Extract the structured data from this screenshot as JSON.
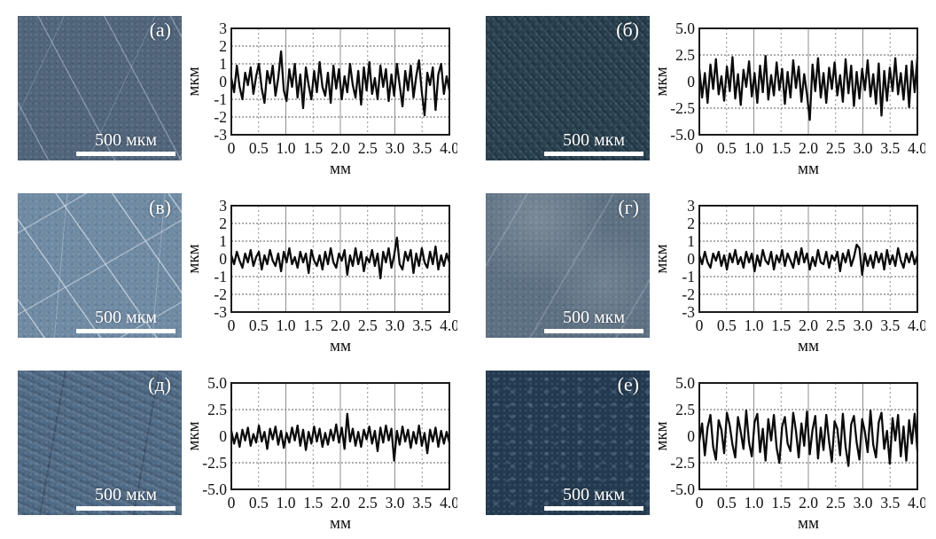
{
  "figure": {
    "scale_bar_label": "500 мкм",
    "xlabel": "мм",
    "ylabel": "мкм",
    "panels": [
      {
        "label": "(а)",
        "micro_color": "#50647a",
        "texture": "scratched-light"
      },
      {
        "label": "(б)",
        "micro_color": "#28404f",
        "texture": "streaked-dark"
      },
      {
        "label": "(в)",
        "micro_color": "#6f8aa3",
        "texture": "scratched-bright"
      },
      {
        "label": "(г)",
        "micro_color": "#5d7082",
        "texture": "hazy"
      },
      {
        "label": "(д)",
        "micro_color": "#4f6a85",
        "texture": "mottled"
      },
      {
        "label": "(е)",
        "micro_color": "#243a50",
        "texture": "speckled-dark"
      }
    ],
    "line_color": "#0b0b0b",
    "grid_color": "#8f8f8f",
    "frame_color": "#1a1a1a"
  },
  "chart_data": [
    {
      "type": "line",
      "title": "(а)",
      "xlabel": "мм",
      "ylabel": "мкм",
      "xlim": [
        0,
        4
      ],
      "ylim": [
        -3,
        3
      ],
      "xtick_labels": [
        "0",
        "0.5",
        "1.0",
        "1.5",
        "2.0",
        "2.5",
        "3.0",
        "3.5",
        "4.0"
      ],
      "ytick_labels": [
        "3",
        "2",
        "1",
        "0",
        "-1",
        "-2",
        "-3"
      ],
      "hgrid": [
        2,
        1,
        -1,
        -2
      ],
      "values": [
        0.2,
        -0.6,
        0.9,
        -0.3,
        -1.0,
        0.5,
        -0.2,
        0.8,
        -0.7,
        0.3,
        1.0,
        -0.4,
        -1.2,
        0.6,
        -0.1,
        0.9,
        -0.8,
        0.2,
        1.7,
        -0.5,
        -1.1,
        0.7,
        -0.3,
        1.0,
        -0.9,
        0.4,
        -1.5,
        0.8,
        -0.2,
        -1.0,
        0.6,
        -0.6,
        1.1,
        -0.3,
        -0.8,
        0.5,
        -1.2,
        0.9,
        -0.4,
        0.7,
        -1.0,
        0.3,
        -0.6,
        1.0,
        -0.2,
        -0.9,
        0.6,
        -1.3,
        0.8,
        -0.5,
        1.1,
        -0.7,
        0.2,
        -1.0,
        0.9,
        -0.3,
        0.7,
        -1.1,
        0.4,
        -0.8,
        1.0,
        -0.2,
        -1.4,
        0.6,
        -0.5,
        0.9,
        -0.9,
        0.3,
        1.2,
        -0.6,
        -1.9,
        0.5,
        -0.2,
        0.8,
        -1.6,
        0.4,
        1.0,
        -0.7,
        0.3,
        -0.5
      ]
    },
    {
      "type": "line",
      "title": "(б)",
      "xlabel": "мм",
      "ylabel": "мкм",
      "xlim": [
        0,
        4
      ],
      "ylim": [
        -5,
        5
      ],
      "xtick_labels": [
        "0",
        "0.5",
        "1.0",
        "1.5",
        "2.0",
        "2.5",
        "3.0",
        "3.5",
        "4.0"
      ],
      "ytick_labels": [
        "5.0",
        "2.5",
        "0",
        "-2.5",
        "-5.0"
      ],
      "hgrid": [
        2.5,
        -2.5
      ],
      "values": [
        1.2,
        -1.5,
        0.8,
        -2.0,
        1.6,
        -0.7,
        2.1,
        -1.2,
        0.5,
        -1.8,
        1.4,
        -0.9,
        2.3,
        -1.6,
        0.7,
        -2.2,
        1.1,
        -0.5,
        1.9,
        -1.4,
        0.8,
        -2.0,
        1.5,
        -1.0,
        2.4,
        -1.7,
        0.6,
        -1.3,
        1.8,
        -0.8,
        1.2,
        -2.1,
        0.9,
        -1.5,
        2.0,
        -0.6,
        1.4,
        -1.9,
        0.7,
        -1.2,
        -3.6,
        1.6,
        -0.9,
        2.2,
        -1.5,
        0.8,
        -2.0,
        1.3,
        -0.7,
        1.8,
        -1.3,
        0.6,
        -1.9,
        2.1,
        -1.1,
        1.5,
        -2.3,
        0.9,
        -1.6,
        1.2,
        -0.8,
        2.0,
        -1.4,
        0.7,
        -2.1,
        1.7,
        -3.2,
        1.0,
        -1.8,
        1.3,
        -0.9,
        2.2,
        -1.2,
        0.8,
        -1.7,
        1.5,
        -2.4,
        1.9,
        -1.0,
        2.3
      ]
    },
    {
      "type": "line",
      "title": "(в)",
      "xlabel": "мм",
      "ylabel": "мкм",
      "xlim": [
        0,
        4
      ],
      "ylim": [
        -3,
        3
      ],
      "xtick_labels": [
        "0",
        "0.5",
        "1.0",
        "1.5",
        "2.0",
        "2.5",
        "3.0",
        "3.5",
        "4.0"
      ],
      "ytick_labels": [
        "3",
        "2",
        "1",
        "0",
        "-1",
        "-2",
        "-3"
      ],
      "hgrid": [
        2,
        1,
        -1,
        -2
      ],
      "values": [
        0.2,
        -0.3,
        0.4,
        -0.1,
        -0.5,
        0.3,
        -0.2,
        0.5,
        -0.4,
        0.1,
        0.4,
        -0.6,
        0.2,
        -0.3,
        0.5,
        -0.1,
        -0.4,
        0.3,
        -0.7,
        0.4,
        -0.2,
        0.6,
        -0.3,
        0.1,
        -0.5,
        0.4,
        -0.2,
        0.3,
        -0.8,
        0.5,
        -0.1,
        -0.4,
        0.2,
        -0.6,
        0.4,
        -0.3,
        0.6,
        -0.2,
        -0.5,
        0.3,
        -0.1,
        0.5,
        -0.9,
        0.2,
        -0.4,
        0.6,
        -0.3,
        0.4,
        -0.7,
        0.1,
        -0.2,
        0.5,
        -0.4,
        0.3,
        -1.1,
        0.4,
        -0.2,
        0.6,
        -0.5,
        0.2,
        1.2,
        -0.3,
        -0.6,
        0.4,
        -0.1,
        0.5,
        -0.8,
        0.3,
        -0.4,
        0.6,
        -0.2,
        -0.5,
        0.4,
        -0.3,
        0.7,
        -0.6,
        0.2,
        -0.4,
        0.3,
        -0.2
      ]
    },
    {
      "type": "line",
      "title": "(г)",
      "xlabel": "мм",
      "ylabel": "мкм",
      "xlim": [
        0,
        4
      ],
      "ylim": [
        -3,
        3
      ],
      "xtick_labels": [
        "0",
        "0.5",
        "1.0",
        "1.5",
        "2.0",
        "2.5",
        "3.0",
        "3.5",
        "4.0"
      ],
      "ytick_labels": [
        "3",
        "2",
        "1",
        "0",
        "-1",
        "-2",
        "-3"
      ],
      "hgrid": [
        2,
        1,
        -1,
        -2
      ],
      "values": [
        0.2,
        -0.3,
        0.4,
        -0.2,
        -0.5,
        0.3,
        -0.1,
        0.4,
        -0.4,
        0.2,
        -0.6,
        0.3,
        -0.2,
        0.5,
        -0.3,
        0.1,
        -0.5,
        0.4,
        -0.2,
        0.3,
        -0.7,
        0.2,
        -0.4,
        0.5,
        -0.1,
        -0.3,
        0.4,
        -0.6,
        0.2,
        -0.2,
        0.5,
        -0.4,
        0.3,
        -0.1,
        -0.5,
        0.4,
        -0.3,
        0.6,
        -0.2,
        0.3,
        -0.6,
        0.1,
        -0.4,
        0.5,
        -0.2,
        -0.3,
        0.4,
        -0.5,
        0.2,
        -0.1,
        0.4,
        -0.7,
        0.3,
        -0.2,
        0.5,
        -0.4,
        0.1,
        0.8,
        0.6,
        -0.9,
        0.3,
        -0.4,
        0.2,
        -0.5,
        0.4,
        -0.2,
        0.3,
        -0.6,
        0.5,
        -0.3,
        0.2,
        -0.4,
        0.6,
        -0.1,
        -0.5,
        0.3,
        -0.2,
        0.4,
        -0.3,
        0.2
      ]
    },
    {
      "type": "line",
      "title": "(д)",
      "xlabel": "мм",
      "ylabel": "мкм",
      "xlim": [
        0,
        4
      ],
      "ylim": [
        -5,
        5
      ],
      "xtick_labels": [
        "0",
        "0.5",
        "1.0",
        "1.5",
        "2.0",
        "2.5",
        "3.0",
        "3.5",
        "4.0"
      ],
      "ytick_labels": [
        "5.0",
        "2.5",
        "0",
        "-2.5",
        "-5.0"
      ],
      "hgrid": [
        2.5,
        -2.5
      ],
      "values": [
        0.5,
        -0.7,
        0.3,
        -1.0,
        0.6,
        -0.4,
        0.8,
        -0.9,
        0.2,
        -0.6,
        1.0,
        -0.5,
        0.4,
        -1.2,
        0.7,
        -0.3,
        0.9,
        -0.8,
        0.5,
        -1.1,
        0.3,
        -0.6,
        0.8,
        -0.4,
        1.0,
        -0.9,
        0.6,
        -1.3,
        0.4,
        -0.7,
        0.9,
        -0.5,
        0.7,
        -1.0,
        0.3,
        -0.8,
        0.6,
        -0.4,
        1.1,
        -0.6,
        0.8,
        -1.2,
        2.1,
        -0.5,
        0.7,
        -0.9,
        0.4,
        -1.0,
        0.6,
        -0.3,
        0.9,
        -0.7,
        0.5,
        -1.4,
        0.8,
        -0.6,
        1.0,
        -0.4,
        0.7,
        -2.3,
        0.5,
        -0.8,
        0.9,
        -0.5,
        0.6,
        -1.1,
        0.4,
        -0.7,
        1.0,
        -0.9,
        0.3,
        -1.6,
        0.6,
        -0.5,
        0.8,
        -1.0,
        0.5,
        -0.7,
        0.4,
        -0.6
      ]
    },
    {
      "type": "line",
      "title": "(е)",
      "xlabel": "мм",
      "ylabel": "мкм",
      "xlim": [
        0,
        4
      ],
      "ylim": [
        -5,
        5
      ],
      "xtick_labels": [
        "0",
        "0.5",
        "1.0",
        "1.5",
        "2.0",
        "2.5",
        "3.0",
        "3.5",
        "4.0"
      ],
      "ytick_labels": [
        "5.0",
        "2.5",
        "0",
        "-2.5",
        "-5.0"
      ],
      "hgrid": [
        2.5,
        -2.5
      ],
      "values": [
        -0.5,
        1.2,
        -1.8,
        0.8,
        2.0,
        -1.0,
        -2.2,
        1.5,
        0.6,
        -1.6,
        2.2,
        1.0,
        -0.8,
        -2.0,
        1.8,
        0.4,
        -1.2,
        2.4,
        -0.6,
        -1.9,
        1.3,
        2.1,
        -1.5,
        0.7,
        -2.3,
        1.6,
        -0.4,
        2.0,
        -1.1,
        -2.5,
        0.9,
        1.8,
        -0.7,
        -1.4,
        2.2,
        0.5,
        -2.0,
        1.2,
        -0.9,
        2.3,
        -1.7,
        0.6,
        1.9,
        -2.1,
        0.8,
        -1.3,
        2.0,
        -0.5,
        -2.4,
        1.4,
        0.7,
        -1.8,
        2.1,
        -1.0,
        -2.8,
        1.1,
        1.9,
        -0.6,
        -2.2,
        1.6,
        0.4,
        -1.5,
        2.4,
        -0.8,
        -2.0,
        1.3,
        2.2,
        -1.2,
        0.5,
        -2.6,
        1.7,
        -0.4,
        2.0,
        -1.9,
        0.9,
        -2.3,
        1.5,
        -0.7,
        2.1,
        -1.4
      ]
    }
  ]
}
